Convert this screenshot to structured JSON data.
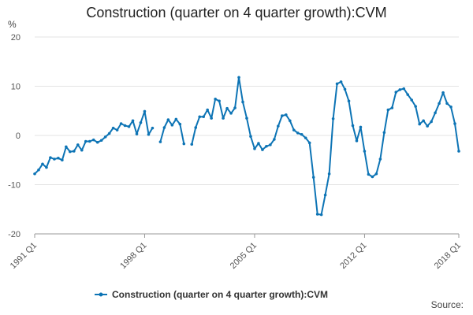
{
  "chart_data": {
    "type": "line",
    "title": "Construction (quarter on 4 quarter growth):CVM",
    "ylabel": "%",
    "xlabel": "",
    "ylim": [
      -20,
      20
    ],
    "yticks": [
      -20,
      -10,
      0,
      10,
      20
    ],
    "xticks": [
      {
        "label": "1991 Q1",
        "index": 0
      },
      {
        "label": "1998 Q1",
        "index": 28
      },
      {
        "label": "2005 Q1",
        "index": 56
      },
      {
        "label": "2012 Q1",
        "index": 84
      },
      {
        "label": "2018 Q1",
        "index": 108
      }
    ],
    "grid": true,
    "legend_position": "bottom",
    "series": [
      {
        "name": "Construction (quarter on 4 quarter growth):CVM",
        "color": "#0d74b5",
        "values": [
          -7.8,
          -7.0,
          -5.8,
          -6.5,
          -4.5,
          -4.8,
          -4.6,
          -5.0,
          -2.3,
          -3.3,
          -3.2,
          -1.9,
          -3.0,
          -1.2,
          -1.2,
          -0.9,
          -1.4,
          -1.0,
          -0.3,
          0.4,
          1.5,
          1.1,
          2.4,
          2.0,
          1.8,
          3.0,
          0.3,
          2.6,
          4.9,
          0.2,
          1.5,
          null,
          -1.3,
          1.6,
          3.2,
          2.1,
          3.3,
          2.3,
          -1.7,
          null,
          -1.8,
          1.6,
          3.8,
          3.8,
          5.2,
          3.5,
          7.4,
          7.0,
          3.5,
          5.5,
          4.5,
          5.6,
          11.8,
          6.8,
          3.5,
          -0.2,
          -2.7,
          -1.6,
          -2.9,
          -2.2,
          -1.9,
          -0.8,
          1.9,
          4.0,
          4.2,
          3.0,
          1.1,
          0.5,
          0.2,
          -0.5,
          -1.5,
          -8.5,
          -16.0,
          -16.1,
          -12.1,
          -7.8,
          3.4,
          10.5,
          10.9,
          9.4,
          7.0,
          2.0,
          -1.1,
          1.7,
          -3.2,
          -7.9,
          -8.4,
          -7.8,
          -4.8,
          0.6,
          5.2,
          5.6,
          8.8,
          9.3,
          9.5,
          8.3,
          7.2,
          5.9,
          2.3,
          3.0,
          1.9,
          2.8,
          4.6,
          6.5,
          8.7,
          6.5,
          5.8,
          2.4,
          -3.2
        ]
      }
    ]
  },
  "source_label": "Source:"
}
